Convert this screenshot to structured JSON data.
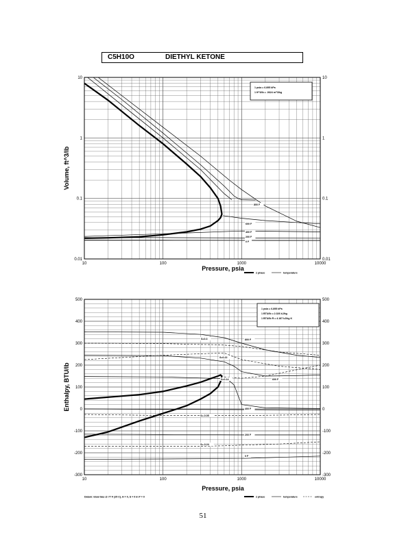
{
  "title": {
    "formula": "C5H10O",
    "name": "DIETHYL KETONE"
  },
  "page_number": "51",
  "chart_data": [
    {
      "type": "line",
      "xscale": "log",
      "yscale": "log",
      "xlim": [
        10,
        10000
      ],
      "ylim": [
        0.01,
        10
      ],
      "xlabel": "Pressure, psia",
      "ylabel": "Volume, ft^3/lb",
      "x_ticks": [
        "10",
        "100",
        "1000",
        "10000"
      ],
      "y_ticks": [
        "0.01",
        "0.1",
        "1",
        "10"
      ],
      "grid": true,
      "info_box": [
        "1 psia = 6.895 kPa",
        "1 ft^3/lb = .0624 m^3/kg"
      ],
      "legend": {
        "two_phase": "2 phase",
        "temperature": "temperature"
      },
      "series": [
        {
          "name": "2 phase",
          "style": "bold",
          "x": [
            10,
            20,
            50,
            100,
            200,
            300,
            400,
            500,
            540,
            560,
            540,
            500,
            400,
            300,
            200,
            100,
            50,
            20,
            10
          ],
          "y": [
            8.0,
            4.2,
            1.6,
            0.8,
            0.37,
            0.23,
            0.15,
            0.1,
            0.075,
            0.055,
            0.048,
            0.043,
            0.035,
            0.031,
            0.028,
            0.025,
            0.0232,
            0.0223,
            0.022
          ]
        },
        {
          "label": "800 F",
          "style": "thin",
          "x": [
            15,
            30,
            100,
            300,
            700,
            1000,
            2000,
            5000,
            10000
          ],
          "y": [
            10,
            5.0,
            1.5,
            0.5,
            0.2,
            0.14,
            0.075,
            0.042,
            0.033
          ]
        },
        {
          "style": "thin",
          "x": [
            13,
            30,
            100,
            300,
            600,
            800,
            900,
            1000,
            1500
          ],
          "y": [
            10,
            4.3,
            1.2,
            0.36,
            0.16,
            0.11,
            0.1,
            0.095,
            0.094
          ]
        },
        {
          "style": "thin",
          "x": [
            11,
            30,
            100,
            300,
            600,
            750
          ],
          "y": [
            10,
            3.5,
            1.0,
            0.3,
            0.12,
            0.095
          ]
        },
        {
          "label": "600 F",
          "style": "thin",
          "x": [
            580,
            1000,
            2000,
            5000,
            10000
          ],
          "y": [
            0.052,
            0.047,
            0.043,
            0.04,
            0.038
          ]
        },
        {
          "label": "400 F",
          "style": "thin",
          "x": [
            10,
            100,
            1000,
            10000
          ],
          "y": [
            0.0235,
            0.026,
            0.029,
            0.028
          ]
        },
        {
          "label": "200 F",
          "style": "thin",
          "x": [
            10,
            100,
            1000,
            10000
          ],
          "y": [
            0.0225,
            0.0225,
            0.0222,
            0.022
          ]
        },
        {
          "label": "0 F",
          "style": "thin",
          "x": [
            10,
            100,
            1000,
            10000
          ],
          "y": [
            0.0205,
            0.0205,
            0.0203,
            0.0202
          ]
        }
      ],
      "annotations": [
        "800 F",
        "600 F",
        "400 F",
        "200 F",
        "0 F"
      ]
    },
    {
      "type": "line",
      "xscale": "log",
      "yscale": "linear",
      "xlim": [
        10,
        10000
      ],
      "ylim": [
        -300,
        500
      ],
      "xlabel": "Pressure, psia",
      "ylabel": "Enthalpy, BTU/lb",
      "x_ticks": [
        "10",
        "100",
        "1000",
        "10000"
      ],
      "y_ticks": [
        "-300",
        "-200",
        "-100",
        "0",
        "100",
        "200",
        "300",
        "400",
        "500"
      ],
      "grid": true,
      "info_box": [
        "1 psia = 6.895 kPa",
        "1 BTU/lb = 2.326 kJ/kg",
        "1 BTU/lb R = 4.187 kJ/kg K"
      ],
      "legend": {
        "two_phase": "2 phase",
        "temperature": "temperature",
        "entropy": "entropy"
      },
      "datum": "Datum: Ideal Gas @ 77 F (25 C), H = 0, S = 0 in P = 0",
      "series": [
        {
          "name": "2 phase",
          "style": "bold",
          "x": [
            10,
            50,
            100,
            200,
            300,
            400,
            500,
            540,
            560,
            540,
            500,
            400,
            300,
            200,
            150,
            100,
            50,
            20,
            10
          ],
          "y": [
            45,
            65,
            80,
            105,
            122,
            138,
            150,
            155,
            150,
            125,
            100,
            70,
            45,
            15,
            0,
            -20,
            -55,
            -105,
            -130
          ]
        },
        {
          "label": "800 F",
          "style": "thin",
          "x": [
            10,
            100,
            300,
            600,
            1000,
            2000,
            5000,
            10000
          ],
          "y": [
            352,
            350,
            340,
            325,
            300,
            270,
            245,
            235
          ]
        },
        {
          "style": "thin",
          "x": [
            10,
            100,
            300,
            600,
            800,
            1000,
            2000,
            5000,
            10000
          ],
          "y": [
            245,
            243,
            232,
            215,
            195,
            170,
            150,
            152,
            155
          ]
        },
        {
          "label": "600 F",
          "style": "thin",
          "x": [
            10,
            100,
            400,
            650,
            800,
            1000,
            2000,
            5000,
            10000
          ],
          "y": [
            148,
            146,
            140,
            138,
            110,
            20,
            5,
            3,
            2
          ]
        },
        {
          "label": "400 F",
          "style": "thin",
          "x": [
            10,
            100,
            1000,
            10000
          ],
          "y": [
            0,
            -2,
            -3,
            -5
          ]
        },
        {
          "label": "200 F",
          "style": "thin",
          "x": [
            10,
            100,
            1000,
            10000
          ],
          "y": [
            -115,
            -117,
            -118,
            -118
          ]
        },
        {
          "label": "0 F",
          "style": "thin",
          "x": [
            10,
            100,
            1000,
            10000
          ],
          "y": [
            -230,
            -228,
            -226,
            -215
          ]
        },
        {
          "label": "S=0.3",
          "style": "dashed",
          "x": [
            10,
            100,
            300,
            500,
            1000,
            3000,
            10000
          ],
          "y": [
            300,
            298,
            294,
            293,
            285,
            260,
            245
          ]
        },
        {
          "label": "S=0.22",
          "style": "dashed",
          "x": [
            10,
            100,
            300,
            600,
            1000,
            3000,
            10000
          ],
          "y": [
            225,
            245,
            252,
            255,
            225,
            195,
            180
          ]
        },
        {
          "label": "S=0.14",
          "style": "dashed",
          "x": [
            600,
            1000,
            2000,
            10000
          ],
          "y": [
            145,
            140,
            150,
            200
          ]
        },
        {
          "label": "S=-0.05",
          "style": "dashed",
          "x": [
            10,
            100,
            300,
            600,
            1000,
            3000,
            10000
          ],
          "y": [
            -25,
            -30,
            -30,
            -30,
            -30,
            -28,
            -25
          ]
        },
        {
          "label": "S=-0.24",
          "style": "dashed",
          "x": [
            10,
            100,
            300,
            600,
            1000,
            3000,
            10000
          ],
          "y": [
            -170,
            -170,
            -170,
            -168,
            -165,
            -160,
            -150
          ]
        }
      ],
      "annotations": [
        "S=0.3",
        "800 F",
        "S=0.22",
        "S=0.14",
        "600 F",
        "400 F",
        "S=-0.05",
        "200 F",
        "S=-0.24",
        "0 F"
      ]
    }
  ]
}
